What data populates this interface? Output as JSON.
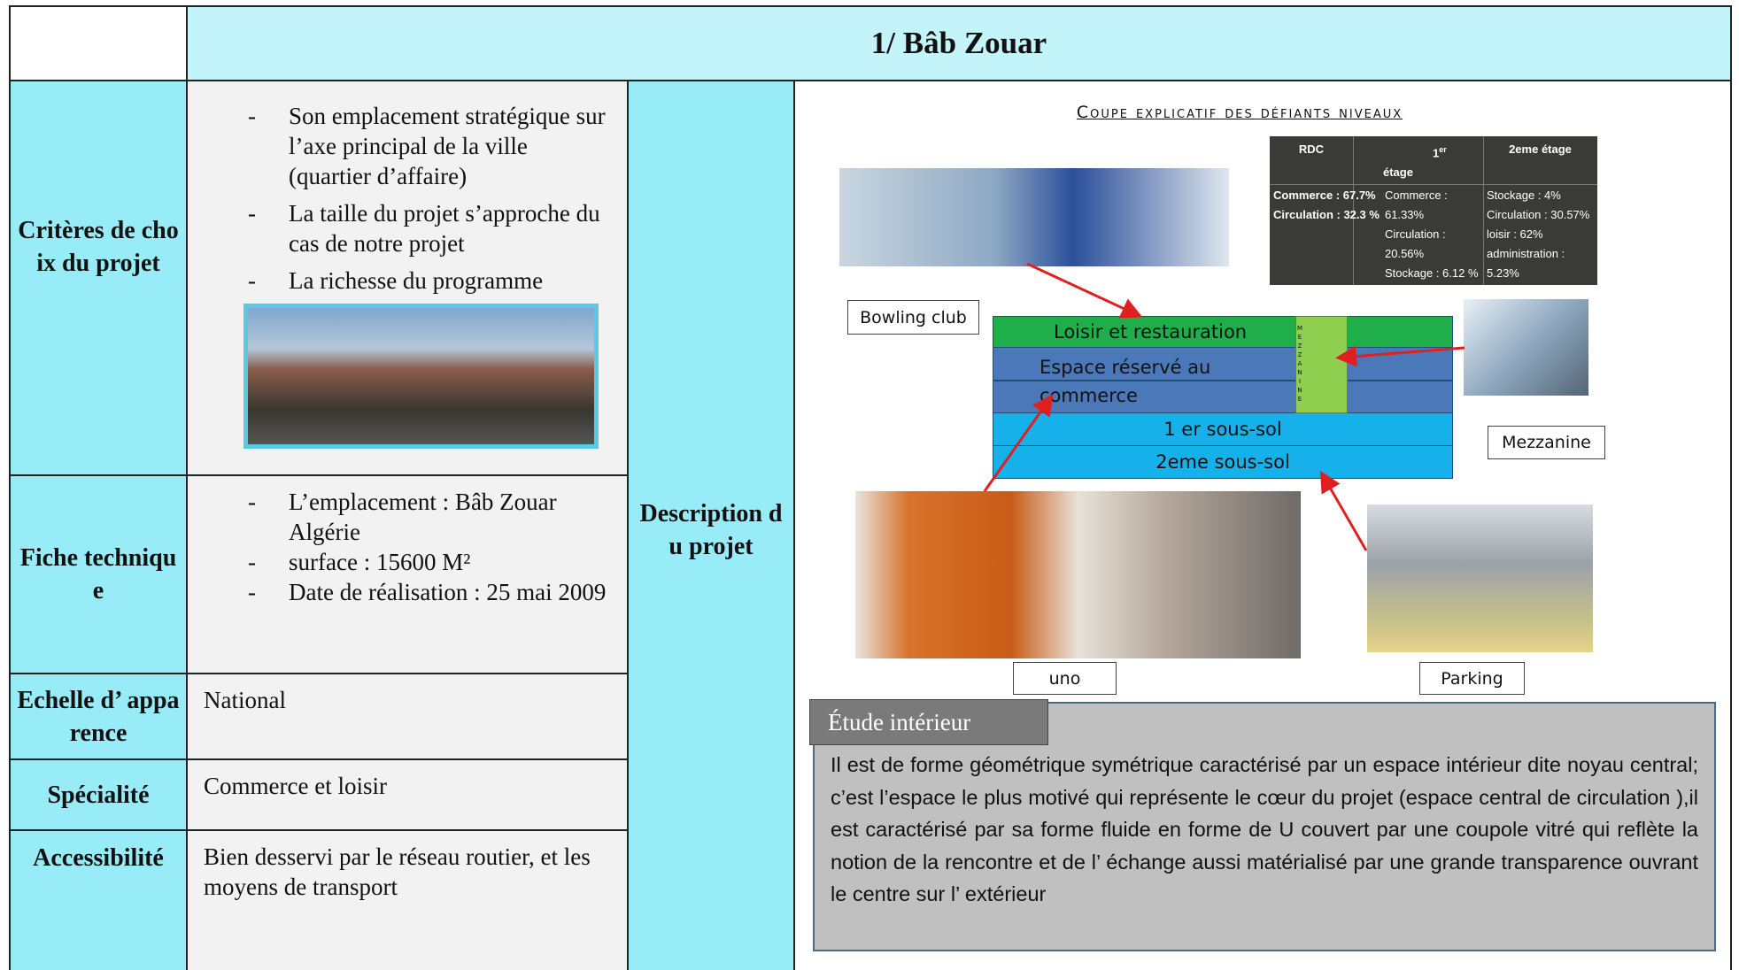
{
  "header": {
    "title": "1/ Bâb Zouar"
  },
  "rows": [
    {
      "label": "Critères de choix du projet",
      "items": [
        "Son emplacement stratégique sur l’axe principal de la ville (quartier d’affaire)",
        "La taille du projet s’approche du cas de notre projet",
        "La richesse du programme"
      ]
    },
    {
      "label": "Fiche technique",
      "items": [
        "L’emplacement : Bâb Zouar Algérie",
        "surface : 15600 M²",
        "Date de réalisation : 25 mai 2009"
      ]
    },
    {
      "label": "Echelle d’ apparence",
      "text": "National"
    },
    {
      "label": "Spécialité",
      "text": "Commerce et loisir"
    },
    {
      "label": "Accessibilité",
      "text": "Bien desservi par le réseau routier, et les moyens de transport"
    }
  ],
  "description": {
    "label": "Description du projet"
  },
  "diagram": {
    "title": "Coupe explicatif des défiants niveaux",
    "table": {
      "headers": [
        "RDC",
        {
          "main": "1",
          "sup": "er",
          "rest": "étage"
        },
        "2eme étage"
      ],
      "columns": [
        [
          "Commerce : 67.7%",
          "Circulation : 32.3 %"
        ],
        [
          "Commerce :",
          "61.33%",
          "Circulation :",
          "20.56%",
          "Stockage : 6.12 %"
        ],
        [
          "Stockage : 4%",
          "Circulation : 30.57%",
          "loisir : 62%",
          "administration :",
          "5.23%"
        ]
      ]
    },
    "levels": [
      "Loisir et restauration",
      "Espace réservé au commerce",
      "1 er sous-sol",
      "2eme sous-sol"
    ],
    "mezzanine_strip": "MEZZANINE",
    "labels": {
      "bowling": "Bowling club",
      "mezzanine": "Mezzanine",
      "uno": "uno",
      "parking": "Parking"
    }
  },
  "study": {
    "tab": "Étude intérieur",
    "text": "Il est de forme géométrique symétrique caractérisé par un espace intérieur dite noyau central; c’est l’espace le plus motivé qui représente le cœur du projet (espace central de circulation ),il est caractérisé par sa forme fluide en forme de U couvert par une coupole vitré qui reflète la notion de la rencontre et de l’ échange aussi matérialisé par une grande transparence ouvrant le centre sur l’ extérieur"
  }
}
